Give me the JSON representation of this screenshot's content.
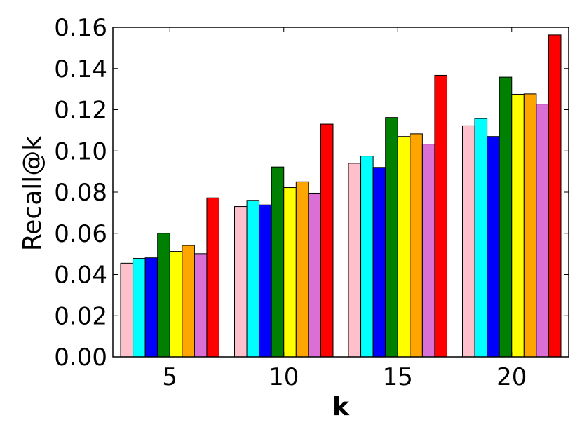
{
  "chart_data": {
    "type": "bar",
    "xlabel": "k",
    "ylabel": "Recall@k",
    "categories": [
      "5",
      "10",
      "15",
      "20"
    ],
    "ylim": [
      0,
      0.16
    ],
    "yticks": [
      "0.00",
      "0.02",
      "0.04",
      "0.06",
      "0.08",
      "0.10",
      "0.12",
      "0.14",
      "0.16"
    ],
    "grid": false,
    "legend": "none",
    "series": [
      {
        "color": "#ffc0cb",
        "values": [
          0.0455,
          0.073,
          0.094,
          0.1122
        ]
      },
      {
        "color": "#00ffff",
        "values": [
          0.0478,
          0.076,
          0.0975,
          0.1157
        ]
      },
      {
        "color": "#0000ff",
        "values": [
          0.0481,
          0.0738,
          0.092,
          0.107
        ]
      },
      {
        "color": "#008000",
        "values": [
          0.06,
          0.0922,
          0.1162,
          0.1358
        ]
      },
      {
        "color": "#ffff00",
        "values": [
          0.0512,
          0.0822,
          0.107,
          0.1275
        ]
      },
      {
        "color": "#ffa500",
        "values": [
          0.0541,
          0.085,
          0.1083,
          0.1277
        ]
      },
      {
        "color": "#da70d6",
        "values": [
          0.0501,
          0.0795,
          0.1033,
          0.1227
        ]
      },
      {
        "color": "#ff0000",
        "values": [
          0.0772,
          0.113,
          0.1367,
          0.1563
        ]
      }
    ]
  }
}
